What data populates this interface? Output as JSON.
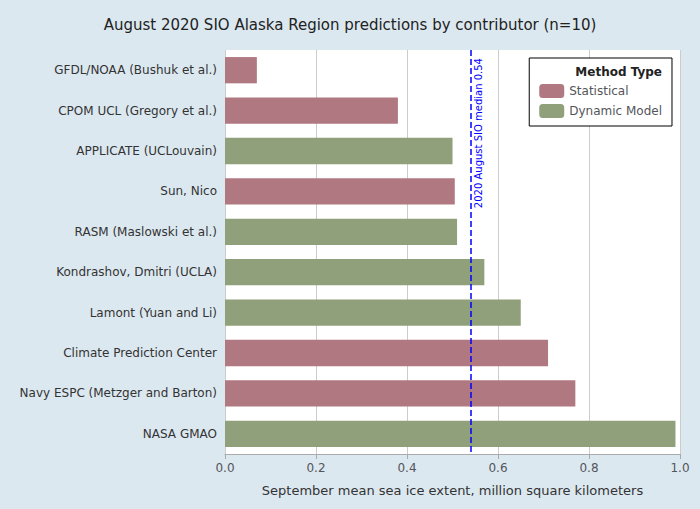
{
  "chart_data": {
    "type": "bar",
    "orientation": "horizontal",
    "title": "August 2020 SIO Alaska Region predictions by contributor (n=10)",
    "x_label": "September mean sea ice extent, million square kilometers",
    "categories": [
      "GFDL/NOAA (Bushuk et al.)",
      "CPOM UCL (Gregory et al.)",
      "APPLICATE (UCLouvain)",
      "Sun, Nico",
      "RASM (Maslowski et al.)",
      "Kondrashov, Dmitri (UCLA)",
      "Lamont (Yuan and Li)",
      "Climate Prediction Center",
      "Navy ESPC (Metzger and Barton)",
      "NASA GMAO"
    ],
    "series": [
      {
        "name": "Statistical",
        "color": "#b07880",
        "values": [
          0.07,
          0.38,
          null,
          0.505,
          null,
          null,
          null,
          0.71,
          0.77,
          null
        ]
      },
      {
        "name": "Dynamic Model",
        "color": "#8fa07a",
        "values": [
          null,
          null,
          0.5,
          null,
          0.51,
          0.57,
          0.65,
          null,
          null,
          0.99
        ]
      }
    ],
    "xlim": [
      0,
      1.0
    ],
    "xticks": [
      {
        "value": 0,
        "label": "0.0"
      },
      {
        "value": 0.2,
        "label": "0.2"
      },
      {
        "value": 0.4,
        "label": "0.4"
      },
      {
        "value": 0.6,
        "label": "0.6"
      },
      {
        "value": 0.8,
        "label": "0.8"
      },
      {
        "value": 1.0,
        "label": "1.0"
      }
    ],
    "grid": true,
    "legend": "upper right",
    "legend_title": "Method Type",
    "annotations": [
      {
        "type": "vline",
        "x": 0.54,
        "text": "2020 August SIO median 0.54",
        "color": "blue",
        "line_style": "dashed"
      }
    ],
    "background_color": "#dce8f0"
  }
}
